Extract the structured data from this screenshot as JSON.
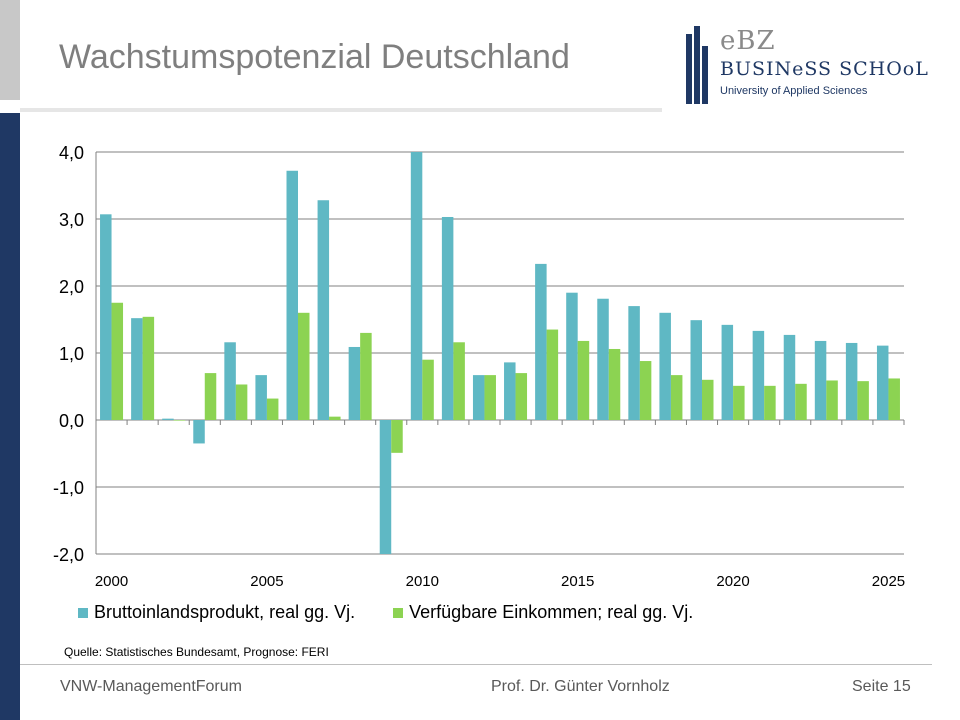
{
  "slide": {
    "title": "Wachstumspotenzial Deutschland",
    "source": "Quelle: Statistisches Bundesamt, Prognose: FERI",
    "footer_left": "VNW-ManagementForum",
    "footer_center": "Prof. Dr. Günter Vornholz",
    "footer_right": "Seite 15"
  },
  "logo": {
    "mark_text": "eBZ",
    "name": "BUSINeSS SCHOoL",
    "subtitle": "University of Applied Sciences"
  },
  "colors": {
    "title": "#7f7f7f",
    "navy": "#1f3864",
    "series_gdp": "#5fb8c4",
    "series_income": "#8cd352"
  },
  "chart_data": {
    "type": "bar",
    "title": "",
    "xlabel": "",
    "ylabel": "",
    "categories": [
      2000,
      2001,
      2002,
      2003,
      2004,
      2005,
      2006,
      2007,
      2008,
      2009,
      2010,
      2011,
      2012,
      2013,
      2014,
      2015,
      2016,
      2017,
      2018,
      2019,
      2020,
      2021,
      2022,
      2023,
      2024,
      2025
    ],
    "x_tick_labels": [
      "2000",
      "2005",
      "2010",
      "2015",
      "2020",
      "2025"
    ],
    "y_tick_labels": [
      "4,0",
      "3,0",
      "2,0",
      "1,0",
      "0,0",
      "-1,0",
      "-2,0"
    ],
    "y_tick_values": [
      4,
      3,
      2,
      1,
      0,
      -1,
      -2
    ],
    "ylim": [
      -2,
      4
    ],
    "grid": true,
    "legend_position": "bottom",
    "series": [
      {
        "name": "Bruttoinlandsprodukt, real gg. Vj.",
        "color_key": "series_gdp",
        "values": [
          3.07,
          1.52,
          0.02,
          -0.35,
          1.16,
          0.67,
          3.72,
          3.28,
          1.09,
          -2.0,
          4.0,
          3.03,
          0.67,
          0.86,
          2.33,
          1.9,
          1.81,
          1.7,
          1.6,
          1.49,
          1.42,
          1.33,
          1.27,
          1.18,
          1.15,
          1.11
        ]
      },
      {
        "name": "Verfügbare Einkommen; real gg. Vj.",
        "color_key": "series_income",
        "values": [
          1.75,
          1.54,
          0.0,
          0.7,
          0.53,
          0.32,
          1.6,
          0.05,
          1.3,
          -0.49,
          0.9,
          1.16,
          0.67,
          0.7,
          1.35,
          1.18,
          1.06,
          0.88,
          0.67,
          0.6,
          0.51,
          0.51,
          0.54,
          0.59,
          0.58,
          0.62
        ]
      }
    ]
  }
}
